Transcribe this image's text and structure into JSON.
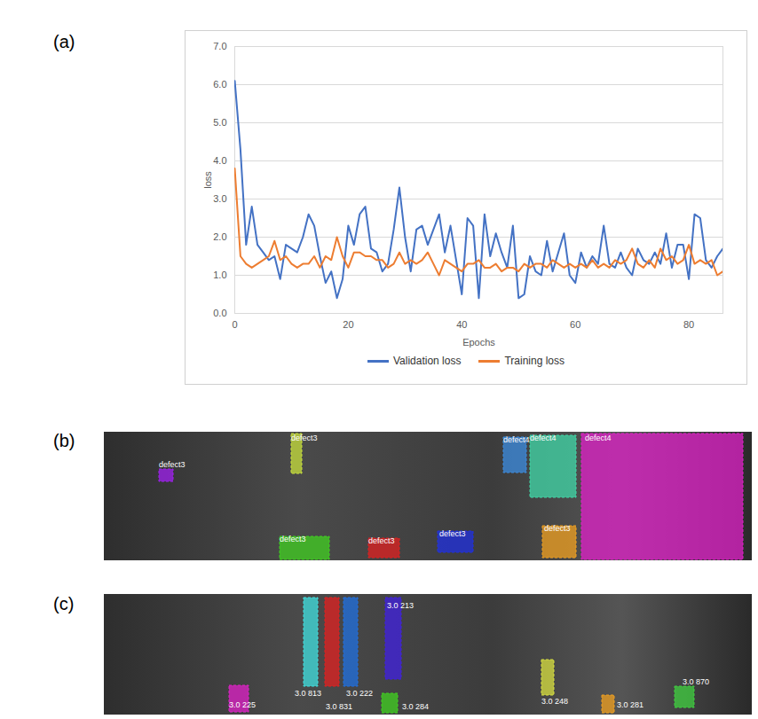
{
  "chart_data": {
    "panel": "(a)",
    "type": "line",
    "x_label": "Epochs",
    "y_label": "loss",
    "x": [
      0,
      1,
      2,
      3,
      4,
      5,
      6,
      7,
      8,
      9,
      10,
      11,
      12,
      13,
      14,
      15,
      16,
      17,
      18,
      19,
      20,
      21,
      22,
      23,
      24,
      25,
      26,
      27,
      28,
      29,
      30,
      31,
      32,
      33,
      34,
      35,
      36,
      37,
      38,
      39,
      40,
      41,
      42,
      43,
      44,
      45,
      46,
      47,
      48,
      49,
      50,
      51,
      52,
      53,
      54,
      55,
      56,
      57,
      58,
      59,
      60,
      61,
      62,
      63,
      64,
      65,
      66,
      67,
      68,
      69,
      70,
      71,
      72,
      73,
      74,
      75,
      76,
      77,
      78,
      79,
      80,
      81,
      82,
      83,
      84,
      85,
      86
    ],
    "series": [
      {
        "name": "Validation loss",
        "color": "#4472c4",
        "values": [
          6.1,
          4.3,
          1.8,
          2.8,
          1.8,
          1.6,
          1.4,
          1.5,
          0.9,
          1.8,
          1.7,
          1.6,
          2.0,
          2.6,
          2.3,
          1.5,
          0.8,
          1.1,
          0.4,
          0.9,
          2.3,
          1.8,
          2.6,
          2.8,
          1.7,
          1.6,
          1.1,
          1.3,
          2.2,
          3.3,
          2.0,
          1.1,
          2.2,
          2.3,
          1.8,
          2.2,
          2.6,
          1.6,
          2.3,
          1.4,
          0.5,
          2.5,
          2.3,
          0.4,
          2.6,
          1.5,
          2.1,
          1.6,
          1.2,
          2.3,
          0.4,
          0.5,
          1.5,
          1.1,
          1.0,
          1.9,
          1.1,
          1.6,
          2.1,
          1.0,
          0.8,
          1.6,
          1.2,
          1.5,
          1.3,
          2.3,
          1.3,
          1.2,
          1.6,
          1.2,
          1.0,
          1.7,
          1.4,
          1.3,
          1.6,
          1.3,
          2.1,
          1.2,
          1.8,
          1.8,
          0.9,
          2.6,
          2.5,
          1.4,
          1.2,
          1.5,
          1.7
        ]
      },
      {
        "name": "Training loss",
        "color": "#ed7d31",
        "values": [
          3.8,
          1.5,
          1.3,
          1.2,
          1.3,
          1.4,
          1.5,
          1.9,
          1.4,
          1.5,
          1.3,
          1.2,
          1.3,
          1.3,
          1.5,
          1.2,
          1.5,
          1.4,
          2.0,
          1.5,
          1.2,
          1.6,
          1.6,
          1.5,
          1.5,
          1.4,
          1.4,
          1.2,
          1.3,
          1.6,
          1.3,
          1.4,
          1.3,
          1.4,
          1.6,
          1.3,
          1.0,
          1.4,
          1.3,
          1.2,
          1.1,
          1.3,
          1.3,
          1.4,
          1.2,
          1.2,
          1.3,
          1.1,
          1.2,
          1.2,
          1.1,
          1.3,
          1.2,
          1.3,
          1.3,
          1.2,
          1.4,
          1.3,
          1.2,
          1.3,
          1.2,
          1.3,
          1.2,
          1.4,
          1.2,
          1.3,
          1.2,
          1.4,
          1.3,
          1.4,
          1.7,
          1.3,
          1.2,
          1.4,
          1.2,
          1.7,
          1.4,
          1.5,
          1.3,
          1.4,
          1.8,
          1.3,
          1.4,
          1.3,
          1.4,
          1.0,
          1.1
        ]
      }
    ],
    "xlim": [
      0,
      86
    ],
    "xticks": [
      0,
      20,
      40,
      60,
      80
    ],
    "ylim": [
      0,
      7
    ],
    "yticks": [
      0,
      1,
      2,
      3,
      4,
      5,
      6,
      7
    ],
    "grid": "y",
    "legend": "bottom"
  },
  "images": [
    {
      "panel": "(b)",
      "annotations": [
        {
          "text": "defect3",
          "color": "#a020f0"
        },
        {
          "text": "defect3",
          "color": "#c8e03c"
        },
        {
          "text": "defect3",
          "color": "#40d020"
        },
        {
          "text": "defect3",
          "color": "#e02020"
        },
        {
          "text": "defect3",
          "color": "#2030e0"
        },
        {
          "text": "defect4",
          "color": "#3c8ce0"
        },
        {
          "text": "defect4",
          "color": "#40d8a8"
        },
        {
          "text": "defect4",
          "color": "#e020c8"
        },
        {
          "text": "defect3",
          "color": "#f0a020"
        }
      ]
    },
    {
      "panel": "(c)",
      "annotations": [
        {
          "text": "3.0 225",
          "color": "#e020c8"
        },
        {
          "text": "3.0 813",
          "color": "#40e0e0"
        },
        {
          "text": "3.0 831",
          "color": "#e02020"
        },
        {
          "text": "3.0 222",
          "color": "#2070e0"
        },
        {
          "text": "3.0 213",
          "color": "#4020e0"
        },
        {
          "text": "3.0 284",
          "color": "#40d020"
        },
        {
          "text": "3.0 248",
          "color": "#d8e040"
        },
        {
          "text": "3.0 281",
          "color": "#f0a020"
        },
        {
          "text": "3.0 870",
          "color": "#40d040"
        }
      ]
    }
  ]
}
